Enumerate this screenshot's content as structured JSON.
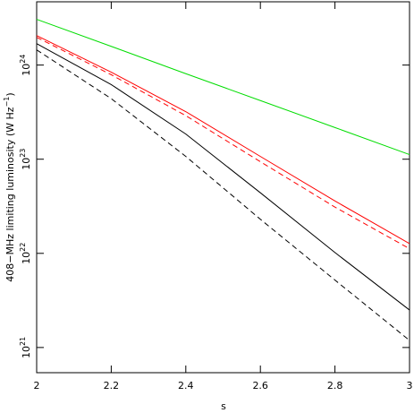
{
  "chart_data": {
    "type": "line",
    "x_label": "s",
    "y_label": "408−MHz limiting luminosity (W Hz^{−1})",
    "x": [
      2,
      2.2,
      2.4,
      2.6,
      2.8,
      3
    ],
    "xlim": [
      2,
      3
    ],
    "xticks": [
      2,
      2.2,
      2.4,
      2.6,
      2.8,
      3
    ],
    "ylim": [
      5.4e+20,
      4.7e+24
    ],
    "ylog": true,
    "yticks": [
      {
        "value": 1e+21,
        "label": "10^{21}"
      },
      {
        "value": 1e+22,
        "label": "10^{22}"
      },
      {
        "value": 1e+23,
        "label": "10^{23}"
      },
      {
        "value": 1e+24,
        "label": "10^{24}"
      }
    ],
    "series": [
      {
        "color": "#00dd00",
        "dash": false,
        "values": [
          3.06e+24,
          1.58e+24,
          8.1e+23,
          4.2e+23,
          2.17e+23,
          1.12e+23
        ]
      },
      {
        "color": "#ff0000",
        "dash": false,
        "values": [
          2.06e+24,
          8.4e+23,
          3.2e+23,
          1.07e+23,
          3.6e+22,
          1.27e+22
        ]
      },
      {
        "color": "#ff0000",
        "dash": true,
        "values": [
          1.97e+24,
          7.9e+23,
          2.9e+23,
          9.4e+22,
          3.1e+22,
          1.12e+22
        ]
      },
      {
        "color": "#000000",
        "dash": false,
        "values": [
          1.69e+24,
          6.2e+23,
          1.85e+23,
          4.4e+22,
          1.02e+22,
          2.5e+21
        ]
      },
      {
        "color": "#000000",
        "dash": true,
        "values": [
          1.45e+24,
          4.4e+23,
          1.07e+23,
          2.3e+22,
          5.2e+21,
          1.19e+21
        ]
      }
    ]
  }
}
